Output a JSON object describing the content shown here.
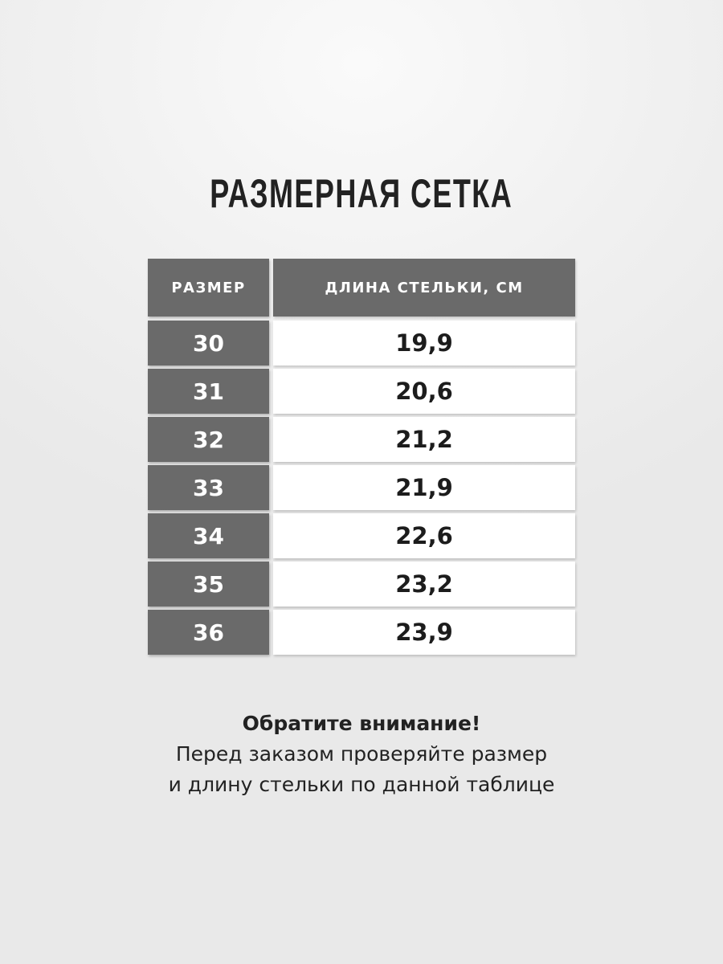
{
  "title": "РАЗМЕРНАЯ СЕТКА",
  "table": {
    "headers": [
      "РАЗМЕР",
      "ДЛИНА СТЕЛЬКИ, СМ"
    ],
    "rows": [
      {
        "size": "30",
        "length": "19,9"
      },
      {
        "size": "31",
        "length": "20,6"
      },
      {
        "size": "32",
        "length": "21,2"
      },
      {
        "size": "33",
        "length": "21,9"
      },
      {
        "size": "34",
        "length": "22,6"
      },
      {
        "size": "35",
        "length": "23,2"
      },
      {
        "size": "36",
        "length": "23,9"
      }
    ]
  },
  "note": {
    "heading": "Обратите внимание!",
    "line1": "Перед заказом проверяйте размер",
    "line2": "и длину стельки по данной таблице"
  },
  "colors": {
    "header_bg": "#6a6a6a",
    "cell_bg": "#ffffff",
    "text": "#222222"
  }
}
